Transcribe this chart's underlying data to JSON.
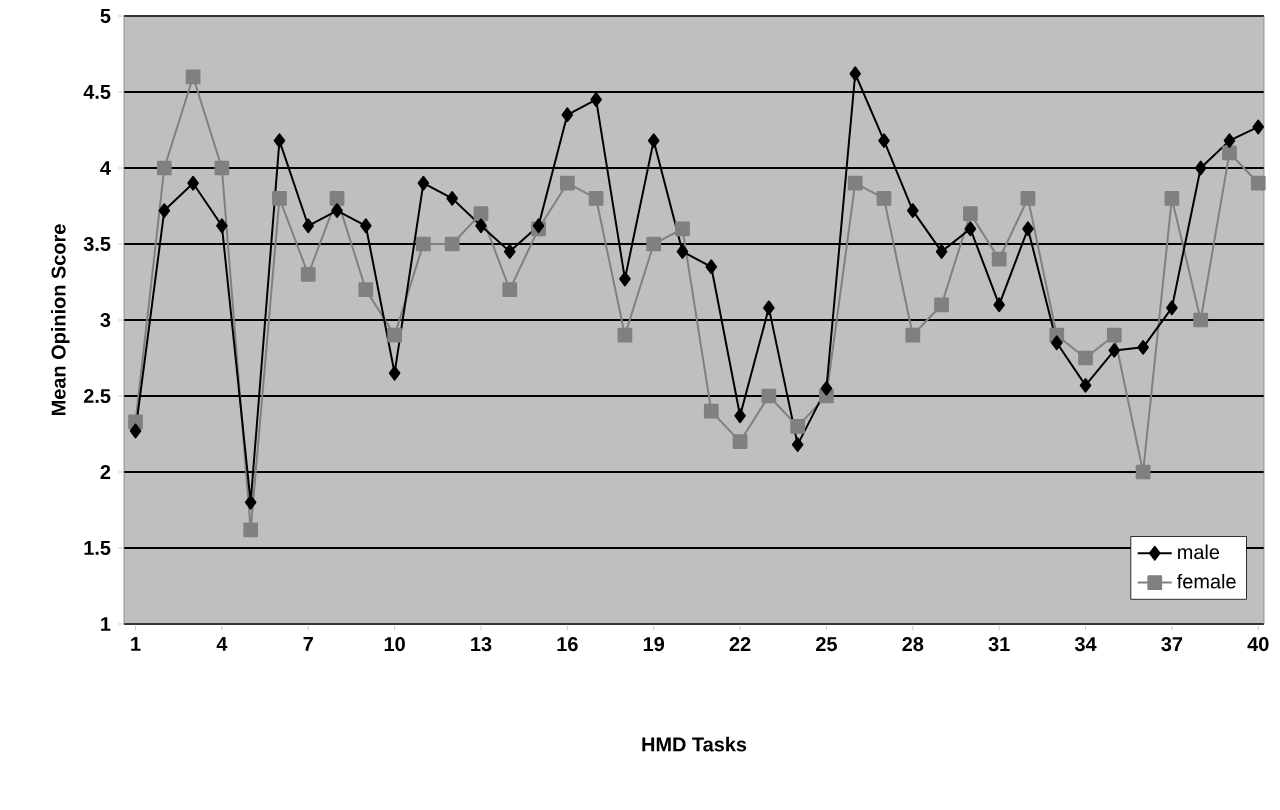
{
  "chart_data": {
    "type": "line",
    "xlabel": "HMD Tasks",
    "ylabel": "Mean Opinion Score",
    "categories": [
      "1",
      null,
      null,
      "4",
      null,
      null,
      "7",
      null,
      null,
      "10",
      null,
      null,
      "13",
      null,
      null,
      "16",
      null,
      null,
      "19",
      null,
      null,
      "22",
      null,
      null,
      "25",
      null,
      null,
      "28",
      null,
      null,
      "31",
      null,
      null,
      "34",
      null,
      null,
      "37",
      null,
      null,
      "40"
    ],
    "series": [
      {
        "name": "male",
        "color": "#000000",
        "marker": "diamond",
        "values": [
          2.27,
          3.72,
          3.9,
          3.62,
          1.8,
          4.18,
          3.62,
          3.72,
          3.62,
          2.65,
          3.9,
          3.8,
          3.62,
          3.45,
          3.62,
          4.35,
          4.45,
          3.27,
          4.18,
          3.45,
          3.35,
          2.37,
          3.08,
          2.18,
          2.55,
          4.62,
          4.18,
          3.72,
          3.45,
          3.6,
          3.1,
          3.6,
          2.85,
          2.57,
          2.8,
          2.82,
          3.08,
          4.0,
          4.18,
          4.27
        ]
      },
      {
        "name": "female",
        "color": "#808080",
        "marker": "square",
        "values": [
          2.33,
          4.0,
          4.6,
          4.0,
          1.62,
          3.8,
          3.3,
          3.8,
          3.2,
          2.9,
          3.5,
          3.5,
          3.7,
          3.2,
          3.6,
          3.9,
          3.8,
          2.9,
          3.5,
          3.6,
          2.4,
          2.2,
          2.5,
          2.3,
          2.5,
          3.9,
          3.8,
          2.9,
          3.1,
          3.7,
          3.4,
          3.8,
          2.9,
          2.75,
          2.9,
          2.0,
          3.8,
          3.0,
          4.1,
          3.9
        ]
      }
    ],
    "ylim": [
      1,
      5
    ],
    "yticks": [
      1,
      1.5,
      2,
      2.5,
      3,
      3.5,
      4,
      4.5,
      5
    ],
    "grid": "y",
    "legend": "bottom right",
    "line_style": "solid"
  }
}
